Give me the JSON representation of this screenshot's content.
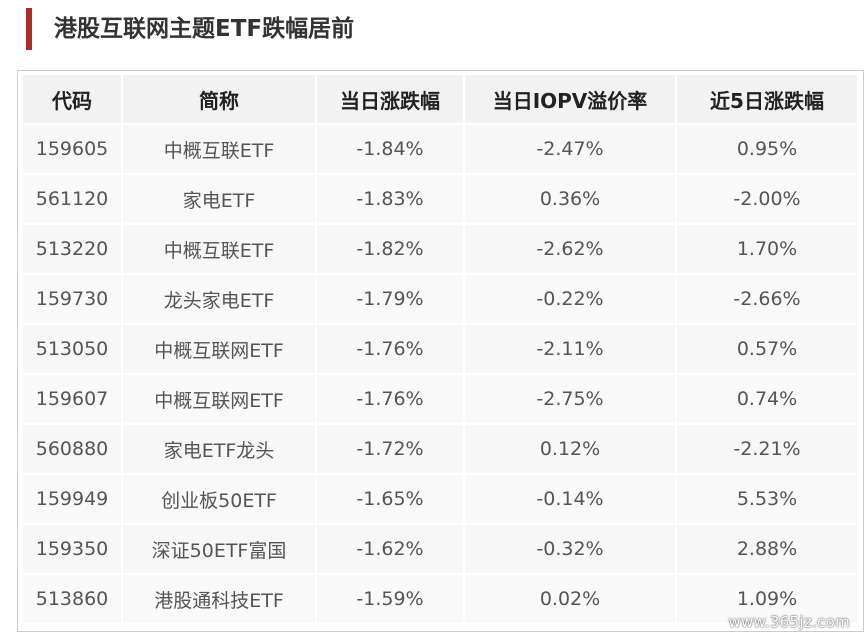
{
  "title": "港股互联网主题ETF跌幅居前",
  "table": {
    "headers": [
      "代码",
      "简称",
      "当日涨跌幅",
      "当日IOPV溢价率",
      "近5日涨跌幅"
    ],
    "rows": [
      [
        "159605",
        "中概互联ETF",
        "-1.84%",
        "-2.47%",
        "0.95%"
      ],
      [
        "561120",
        "家电ETF",
        "-1.83%",
        "0.36%",
        "-2.00%"
      ],
      [
        "513220",
        "中概互联ETF",
        "-1.82%",
        "-2.62%",
        "1.70%"
      ],
      [
        "159730",
        "龙头家电ETF",
        "-1.79%",
        "-0.22%",
        "-2.66%"
      ],
      [
        "513050",
        "中概互联网ETF",
        "-1.76%",
        "-2.11%",
        "0.57%"
      ],
      [
        "159607",
        "中概互联网ETF",
        "-1.76%",
        "-2.75%",
        "0.74%"
      ],
      [
        "560880",
        "家电ETF龙头",
        "-1.72%",
        "0.12%",
        "-2.21%"
      ],
      [
        "159949",
        "创业板50ETF",
        "-1.65%",
        "-0.14%",
        "5.53%"
      ],
      [
        "159350",
        "深证50ETF富国",
        "-1.62%",
        "-0.32%",
        "2.88%"
      ],
      [
        "513860",
        "港股通科技ETF",
        "-1.59%",
        "0.02%",
        "1.09%"
      ]
    ]
  },
  "watermark": "www.365jz.com",
  "colors": {
    "accent": "#b02a2a",
    "header_bg": "#f2f2f2",
    "row_bg": "#f7f7f7"
  }
}
